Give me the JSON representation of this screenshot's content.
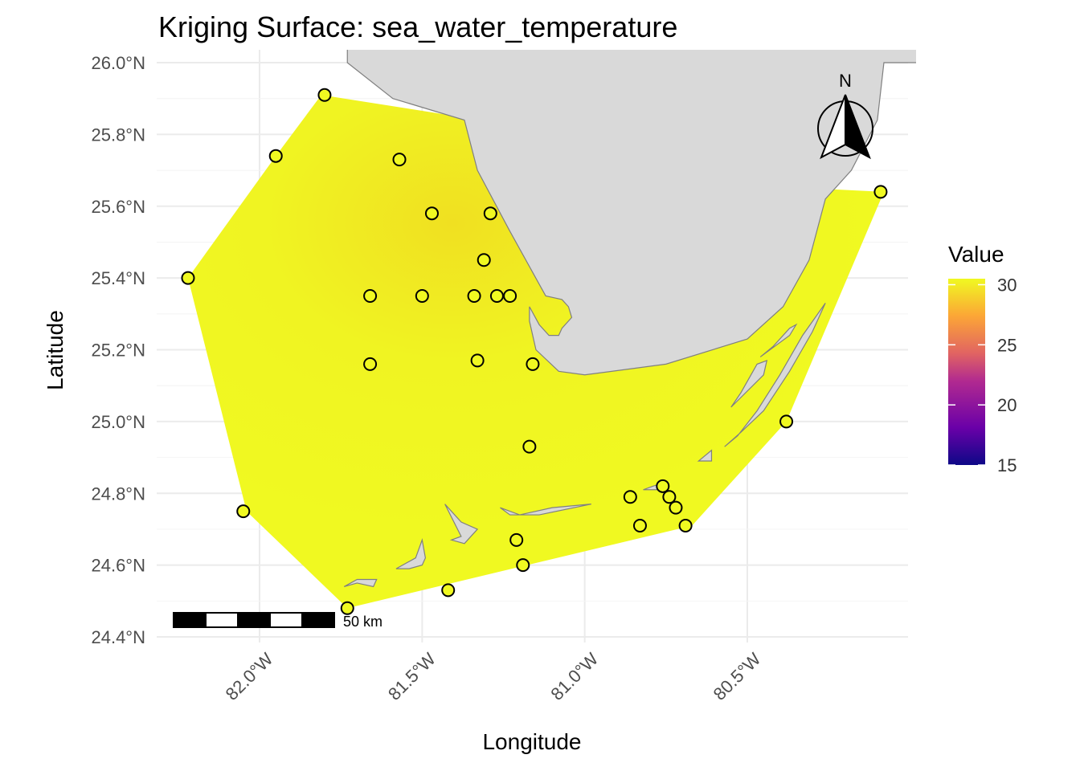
{
  "title": "Kriging Surface: sea_water_temperature",
  "xlabel": "Longitude",
  "ylabel": "Latitude",
  "colors": {
    "land": "#d9d9d9",
    "land_stroke": "#808080",
    "grid": "#ebebeb",
    "point_fill": "#f0f921",
    "point_stroke": "#000000"
  },
  "chart_data": {
    "type": "map",
    "xlim": [
      -82.25,
      -79.95
    ],
    "ylim": [
      24.4,
      26.0
    ],
    "x_ticks": [
      {
        "value": -82.0,
        "label": "82.0°W"
      },
      {
        "value": -81.5,
        "label": "81.5°W"
      },
      {
        "value": -81.0,
        "label": "81.0°W"
      },
      {
        "value": -80.5,
        "label": "80.5°W"
      }
    ],
    "y_ticks": [
      {
        "value": 24.4,
        "label": "24.4°N"
      },
      {
        "value": 24.6,
        "label": "24.6°N"
      },
      {
        "value": 24.8,
        "label": "24.8°N"
      },
      {
        "value": 25.0,
        "label": "25.0°N"
      },
      {
        "value": 25.2,
        "label": "25.2°N"
      },
      {
        "value": 25.4,
        "label": "25.4°N"
      },
      {
        "value": 25.6,
        "label": "25.6°N"
      },
      {
        "value": 25.8,
        "label": "25.8°N"
      },
      {
        "value": 26.0,
        "label": "26.0°N"
      }
    ],
    "grid": true,
    "surface_hull": [
      [
        -81.81,
        25.91
      ],
      [
        -81.32,
        25.84
      ],
      [
        -80.75,
        25.67
      ],
      [
        -80.08,
        25.64
      ],
      [
        -80.38,
        25.0
      ],
      [
        -80.67,
        24.71
      ],
      [
        -81.73,
        24.48
      ],
      [
        -82.04,
        24.75
      ],
      [
        -82.22,
        25.4
      ],
      [
        -81.95,
        25.74
      ]
    ],
    "surface_color_stops": [
      {
        "color": "#f0f921",
        "lon": -81.7,
        "lat": 25.2,
        "note": ""
      }
    ],
    "legend": {
      "title": "Value",
      "position": "right",
      "min": 15,
      "max": 30.5,
      "breaks": [
        15,
        20,
        25,
        30
      ],
      "palette": [
        "#0d0887",
        "#6a00a8",
        "#b12a90",
        "#e16462",
        "#fca636",
        "#f0f921"
      ]
    },
    "points": [
      {
        "lon": -81.8,
        "lat": 25.91
      },
      {
        "lon": -81.95,
        "lat": 25.74
      },
      {
        "lon": -81.57,
        "lat": 25.73
      },
      {
        "lon": -81.47,
        "lat": 25.58
      },
      {
        "lon": -81.29,
        "lat": 25.58
      },
      {
        "lon": -80.09,
        "lat": 25.64
      },
      {
        "lon": -82.22,
        "lat": 25.4
      },
      {
        "lon": -81.31,
        "lat": 25.45
      },
      {
        "lon": -81.66,
        "lat": 25.35
      },
      {
        "lon": -81.5,
        "lat": 25.35
      },
      {
        "lon": -81.34,
        "lat": 25.35
      },
      {
        "lon": -81.27,
        "lat": 25.35
      },
      {
        "lon": -81.23,
        "lat": 25.35
      },
      {
        "lon": -81.66,
        "lat": 25.16
      },
      {
        "lon": -81.33,
        "lat": 25.17
      },
      {
        "lon": -81.16,
        "lat": 25.16
      },
      {
        "lon": -80.38,
        "lat": 25.0
      },
      {
        "lon": -81.17,
        "lat": 24.93
      },
      {
        "lon": -80.76,
        "lat": 24.82
      },
      {
        "lon": -80.86,
        "lat": 24.79
      },
      {
        "lon": -80.74,
        "lat": 24.79
      },
      {
        "lon": -80.72,
        "lat": 24.76
      },
      {
        "lon": -80.83,
        "lat": 24.71
      },
      {
        "lon": -80.69,
        "lat": 24.71
      },
      {
        "lon": -81.21,
        "lat": 24.67
      },
      {
        "lon": -81.19,
        "lat": 24.6
      },
      {
        "lon": -81.42,
        "lat": 24.53
      },
      {
        "lon": -81.73,
        "lat": 24.48
      },
      {
        "lon": -82.05,
        "lat": 24.75
      }
    ],
    "mainland": [
      [
        -81.73,
        26.0
      ],
      [
        -81.59,
        25.9
      ],
      [
        -81.37,
        25.84
      ],
      [
        -81.33,
        25.7
      ],
      [
        -81.23,
        25.53
      ],
      [
        -81.12,
        25.35
      ],
      [
        -81.07,
        25.34
      ],
      [
        -81.05,
        25.32
      ],
      [
        -81.04,
        25.29
      ],
      [
        -81.07,
        25.26
      ],
      [
        -81.08,
        25.24
      ],
      [
        -81.11,
        25.24
      ],
      [
        -81.14,
        25.27
      ],
      [
        -81.17,
        25.32
      ],
      [
        -81.17,
        25.28
      ],
      [
        -81.15,
        25.2
      ],
      [
        -81.08,
        25.14
      ],
      [
        -81.0,
        25.13
      ],
      [
        -80.75,
        25.16
      ],
      [
        -80.5,
        25.23
      ],
      [
        -80.39,
        25.32
      ],
      [
        -80.31,
        25.45
      ],
      [
        -80.26,
        25.62
      ],
      [
        -80.18,
        25.7
      ],
      [
        -80.1,
        25.84
      ],
      [
        -80.08,
        26.0
      ]
    ],
    "islands": [
      [
        [
          -81.26,
          24.76
        ],
        [
          -81.23,
          24.74
        ],
        [
          -81.14,
          24.74
        ],
        [
          -80.98,
          24.77
        ],
        [
          -81.1,
          24.76
        ],
        [
          -81.2,
          24.74
        ]
      ],
      [
        [
          -81.43,
          24.77
        ],
        [
          -81.38,
          24.72
        ],
        [
          -81.33,
          24.7
        ],
        [
          -81.37,
          24.66
        ],
        [
          -81.41,
          24.67
        ],
        [
          -81.38,
          24.68
        ]
      ],
      [
        [
          -81.58,
          24.59
        ],
        [
          -81.52,
          24.62
        ],
        [
          -81.5,
          24.67
        ],
        [
          -81.49,
          24.62
        ],
        [
          -81.5,
          24.6
        ],
        [
          -81.54,
          24.59
        ]
      ],
      [
        [
          -81.74,
          24.54
        ],
        [
          -81.7,
          24.56
        ],
        [
          -81.64,
          24.56
        ],
        [
          -81.65,
          24.54
        ],
        [
          -81.7,
          24.55
        ]
      ],
      [
        [
          -80.82,
          24.81
        ],
        [
          -80.79,
          24.82
        ],
        [
          -80.75,
          24.83
        ],
        [
          -80.77,
          24.81
        ]
      ],
      [
        [
          -80.65,
          24.89
        ],
        [
          -80.61,
          24.92
        ],
        [
          -80.61,
          24.89
        ]
      ],
      [
        [
          -80.57,
          24.93
        ],
        [
          -80.53,
          24.96
        ],
        [
          -80.47,
          25.03
        ],
        [
          -80.4,
          25.13
        ],
        [
          -80.33,
          25.24
        ],
        [
          -80.26,
          25.33
        ],
        [
          -80.3,
          25.25
        ],
        [
          -80.37,
          25.14
        ],
        [
          -80.45,
          25.03
        ],
        [
          -80.52,
          24.97
        ]
      ],
      [
        [
          -80.55,
          25.04
        ],
        [
          -80.52,
          25.08
        ],
        [
          -80.47,
          25.16
        ],
        [
          -80.44,
          25.17
        ],
        [
          -80.45,
          25.13
        ]
      ],
      [
        [
          -80.46,
          25.18
        ],
        [
          -80.42,
          25.21
        ],
        [
          -80.37,
          25.26
        ],
        [
          -80.35,
          25.27
        ],
        [
          -80.37,
          25.24
        ]
      ]
    ],
    "scale_bar": {
      "label": "50 km"
    },
    "north_arrow": {
      "label": "N"
    }
  }
}
